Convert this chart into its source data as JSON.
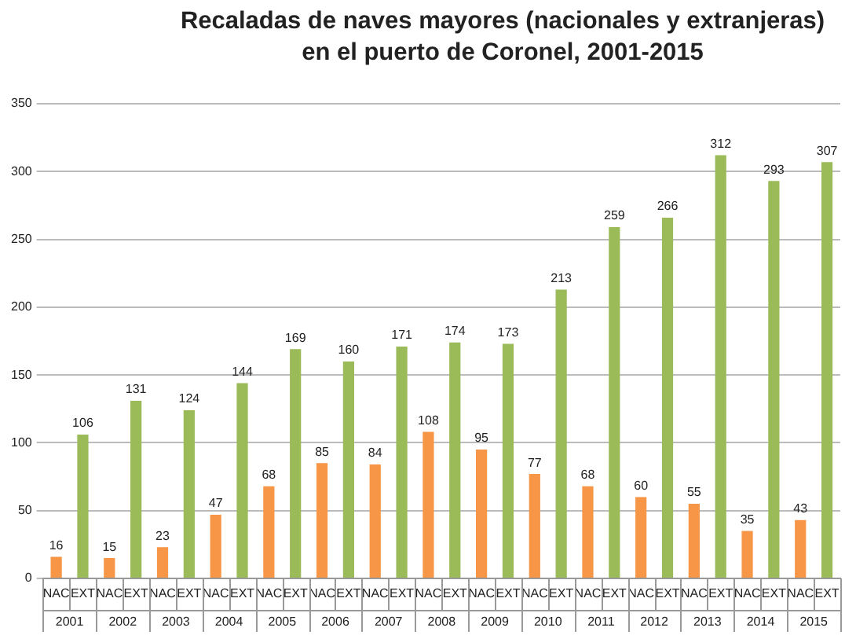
{
  "chart_data": {
    "type": "bar",
    "title": "Recaladas de naves mayores (nacionales y extranjeras) en el puerto de Coronel, 2001-2015",
    "categories": [
      "2001",
      "2002",
      "2003",
      "2004",
      "2005",
      "2006",
      "2007",
      "2008",
      "2009",
      "2010",
      "2011",
      "2012",
      "2013",
      "2014",
      "2015"
    ],
    "series": [
      {
        "name": "NAC",
        "color": "#f79646",
        "values": [
          16,
          15,
          23,
          47,
          68,
          85,
          84,
          108,
          95,
          77,
          68,
          60,
          55,
          35,
          43
        ]
      },
      {
        "name": "EXT",
        "color": "#9bbb59",
        "values": [
          106,
          131,
          124,
          144,
          169,
          160,
          171,
          174,
          173,
          213,
          259,
          266,
          312,
          293,
          307
        ]
      }
    ],
    "ylim": [
      0,
      350
    ],
    "yticks": [
      0,
      50,
      100,
      150,
      200,
      250,
      300,
      350
    ],
    "grid": "y",
    "legend": false,
    "data_labels": true
  }
}
